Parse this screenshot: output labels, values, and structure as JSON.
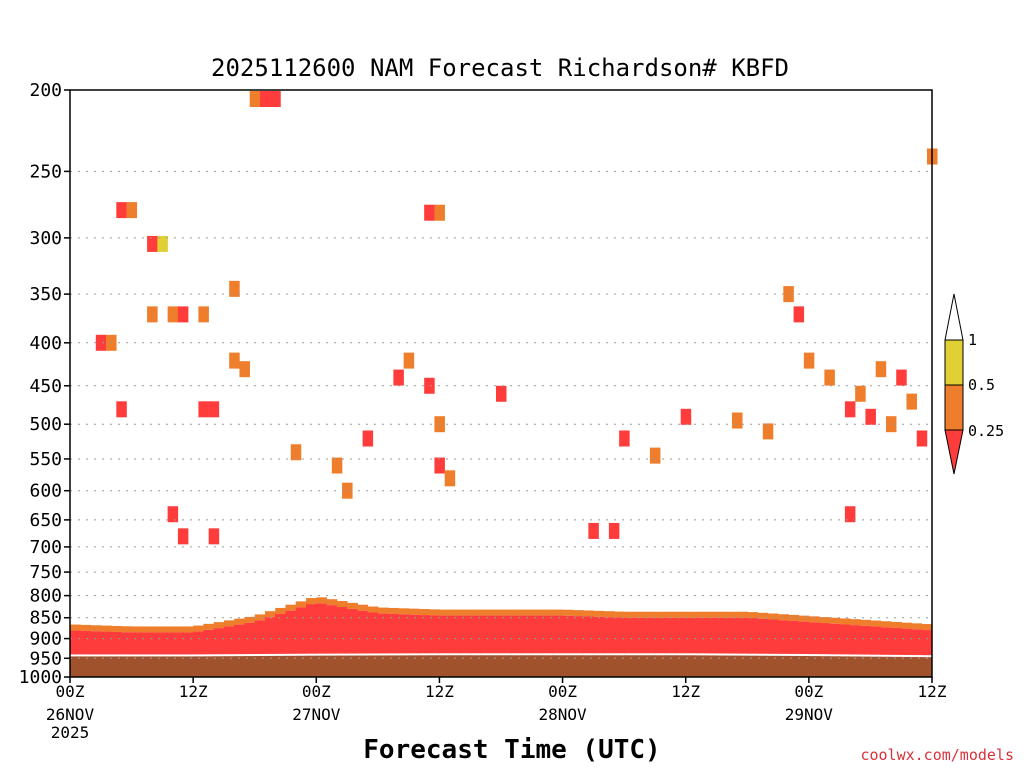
{
  "chart_data": {
    "type": "heatmap",
    "title": "2025112600 NAM Forecast Richardson# KBFD",
    "xlabel": "Forecast Time (UTC)",
    "ylabel": "",
    "y_scale": "log-pressure (inverted)",
    "ylim": [
      1000,
      200
    ],
    "y_ticks": [
      200,
      250,
      300,
      350,
      400,
      450,
      500,
      550,
      600,
      650,
      700,
      750,
      800,
      850,
      900,
      950,
      1000
    ],
    "x_range_hours": [
      0,
      84
    ],
    "x_ticks": [
      {
        "hour": 0,
        "time": "00Z",
        "date": "26NOV",
        "year": "2025"
      },
      {
        "hour": 12,
        "time": "12Z",
        "date": "",
        "year": ""
      },
      {
        "hour": 24,
        "time": "00Z",
        "date": "27NOV",
        "year": ""
      },
      {
        "hour": 36,
        "time": "12Z",
        "date": "",
        "year": ""
      },
      {
        "hour": 48,
        "time": "00Z",
        "date": "28NOV",
        "year": ""
      },
      {
        "hour": 60,
        "time": "12Z",
        "date": "",
        "year": ""
      },
      {
        "hour": 72,
        "time": "00Z",
        "date": "29NOV",
        "year": ""
      },
      {
        "hour": 84,
        "time": "12Z",
        "date": "",
        "year": ""
      }
    ],
    "grid": "dotted horizontal at pressure ticks",
    "legend": {
      "placement": "right",
      "levels": [
        {
          "label": "1",
          "color": "#ffffff"
        },
        {
          "label": "0.5",
          "color": "#e0d033"
        },
        {
          "label": "0.25",
          "color": "#ee7e2b"
        },
        {
          "label": "",
          "color": "#ff3c3c"
        }
      ]
    },
    "categories_colors": {
      "above_1": "#ffffff",
      "0.5_to_1": "#e0d033",
      "0.25_to_0.5": "#ee7e2b",
      "below_0.25": "#ff3c3c",
      "below_ground": "#a0522d"
    },
    "surface_pressure_hpa": {
      "hours": [
        0,
        12,
        24,
        36,
        48,
        60,
        72,
        84
      ],
      "values": [
        940,
        940,
        938,
        937,
        937,
        937,
        939,
        942
      ]
    },
    "boundary_layer_top_hpa": {
      "hours": [
        0,
        6,
        12,
        18,
        24,
        30,
        36,
        42,
        48,
        54,
        60,
        66,
        72,
        78,
        84
      ],
      "values": [
        880,
        885,
        885,
        860,
        815,
        840,
        845,
        845,
        845,
        850,
        850,
        850,
        860,
        870,
        880
      ]
    },
    "cells": [
      {
        "h": 5,
        "p": 278,
        "c": "red"
      },
      {
        "h": 6,
        "p": 278,
        "c": "orange"
      },
      {
        "h": 8,
        "p": 305,
        "c": "red"
      },
      {
        "h": 9,
        "p": 305,
        "c": "yellow"
      },
      {
        "h": 8,
        "p": 370,
        "c": "orange"
      },
      {
        "h": 10,
        "p": 370,
        "c": "orange"
      },
      {
        "h": 11,
        "p": 370,
        "c": "red"
      },
      {
        "h": 13,
        "p": 370,
        "c": "orange"
      },
      {
        "h": 3,
        "p": 400,
        "c": "red"
      },
      {
        "h": 4,
        "p": 400,
        "c": "orange"
      },
      {
        "h": 5,
        "p": 480,
        "c": "red"
      },
      {
        "h": 13,
        "p": 480,
        "c": "red"
      },
      {
        "h": 14,
        "p": 480,
        "c": "red"
      },
      {
        "h": 16,
        "p": 420,
        "c": "orange"
      },
      {
        "h": 17,
        "p": 430,
        "c": "orange"
      },
      {
        "h": 16,
        "p": 345,
        "c": "orange"
      },
      {
        "h": 18,
        "p": 205,
        "c": "orange"
      },
      {
        "h": 19,
        "p": 205,
        "c": "red"
      },
      {
        "h": 20,
        "p": 205,
        "c": "red"
      },
      {
        "h": 22,
        "p": 540,
        "c": "orange"
      },
      {
        "h": 26,
        "p": 560,
        "c": "orange"
      },
      {
        "h": 27,
        "p": 600,
        "c": "orange"
      },
      {
        "h": 29,
        "p": 520,
        "c": "red"
      },
      {
        "h": 32,
        "p": 440,
        "c": "red"
      },
      {
        "h": 33,
        "p": 420,
        "c": "orange"
      },
      {
        "h": 35,
        "p": 280,
        "c": "red"
      },
      {
        "h": 36,
        "p": 280,
        "c": "orange"
      },
      {
        "h": 36,
        "p": 500,
        "c": "orange"
      },
      {
        "h": 35,
        "p": 450,
        "c": "red"
      },
      {
        "h": 36,
        "p": 560,
        "c": "red"
      },
      {
        "h": 37,
        "p": 580,
        "c": "orange"
      },
      {
        "h": 42,
        "p": 460,
        "c": "red"
      },
      {
        "h": 54,
        "p": 520,
        "c": "red"
      },
      {
        "h": 57,
        "p": 545,
        "c": "orange"
      },
      {
        "h": 60,
        "p": 490,
        "c": "red"
      },
      {
        "h": 65,
        "p": 495,
        "c": "orange"
      },
      {
        "h": 68,
        "p": 510,
        "c": "orange"
      },
      {
        "h": 70,
        "p": 350,
        "c": "orange"
      },
      {
        "h": 71,
        "p": 370,
        "c": "red"
      },
      {
        "h": 72,
        "p": 420,
        "c": "orange"
      },
      {
        "h": 74,
        "p": 440,
        "c": "orange"
      },
      {
        "h": 76,
        "p": 480,
        "c": "red"
      },
      {
        "h": 77,
        "p": 460,
        "c": "orange"
      },
      {
        "h": 78,
        "p": 490,
        "c": "red"
      },
      {
        "h": 79,
        "p": 430,
        "c": "orange"
      },
      {
        "h": 80,
        "p": 500,
        "c": "orange"
      },
      {
        "h": 81,
        "p": 440,
        "c": "red"
      },
      {
        "h": 82,
        "p": 470,
        "c": "orange"
      },
      {
        "h": 83,
        "p": 520,
        "c": "red"
      },
      {
        "h": 84,
        "p": 240,
        "c": "orange"
      },
      {
        "h": 10,
        "p": 640,
        "c": "red"
      },
      {
        "h": 11,
        "p": 680,
        "c": "red"
      },
      {
        "h": 14,
        "p": 680,
        "c": "red"
      },
      {
        "h": 51,
        "p": 670,
        "c": "red"
      },
      {
        "h": 53,
        "p": 670,
        "c": "red"
      },
      {
        "h": 76,
        "p": 640,
        "c": "red"
      }
    ]
  },
  "credit": "coolwx.com/models"
}
